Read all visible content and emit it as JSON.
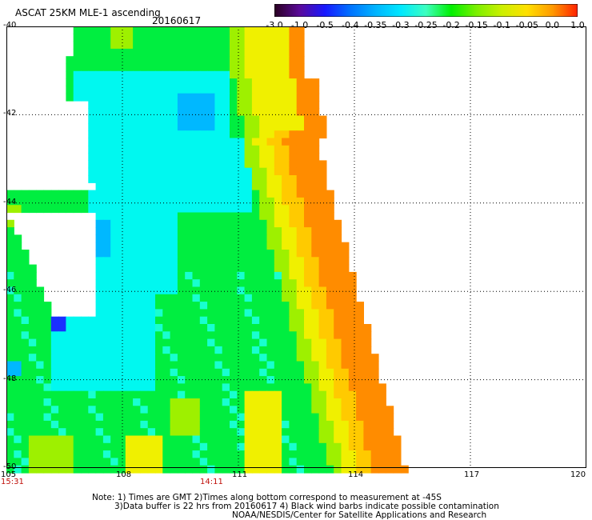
{
  "header": {
    "title": "ASCAT 25KM MLE-1 ascending",
    "date": "20160617"
  },
  "colorbar": {
    "labels": [
      "-3.0",
      "-1.0",
      "-0.5",
      "-0.4",
      "-0.35",
      "-0.3",
      "-0.25",
      "-0.2",
      "-0.15",
      "-0.1",
      "-0.05",
      "0.0",
      "1.0"
    ],
    "colors": [
      "#2a0020",
      "#5a0a9a",
      "#1818ff",
      "#0072ff",
      "#00b4ff",
      "#00e8ff",
      "#3cffc0",
      "#00f000",
      "#7cf000",
      "#ccf000",
      "#ffe000",
      "#ff9a00",
      "#ff2000"
    ]
  },
  "map": {
    "lat_labels": [
      "-40",
      "-42",
      "-44",
      "-46",
      "-48",
      "-50"
    ],
    "lon_labels": [
      "105",
      "108",
      "111",
      "114",
      "117",
      "120"
    ],
    "time_labels": [
      "15:31",
      "14:11"
    ],
    "palette": {
      "blue": "#1a2fff",
      "deep_cyan": "#00b8ff",
      "light_cyan": "#00f8f0",
      "aqua": "#18ffd0",
      "green": "#00ee40",
      "yellow_green": "#9ef000",
      "yellow": "#f0f000",
      "orange_yellow": "#ffca00",
      "orange": "#ff8c00"
    }
  },
  "notes": {
    "line1": "Note: 1) Times are GMT 2)Times along bottom correspond to measurement at -45S",
    "line2": "3)Data buffer is 22 hrs from 20160617 4) Black wind barbs indicate possible contamination",
    "line3": "NOAA/NESDIS/Center for Satellite Applications and Research"
  }
}
